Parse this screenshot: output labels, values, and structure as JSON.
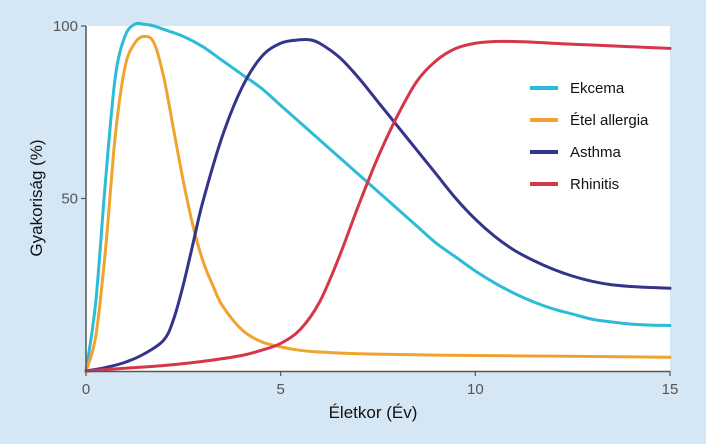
{
  "chart_data": {
    "type": "line",
    "title": "",
    "xlabel": "Életkor (Év)",
    "ylabel": "Gyakoriság (%)",
    "xlim": [
      0,
      15
    ],
    "ylim": [
      0,
      100
    ],
    "x_ticks": [
      0,
      5,
      10,
      15
    ],
    "y_ticks": [
      50,
      100
    ],
    "legend_position": "top-right",
    "grid": false,
    "series": [
      {
        "name": "Ekcema",
        "color": "#2cbcd8",
        "x": [
          0,
          0.25,
          0.5,
          0.75,
          1.0,
          1.25,
          1.5,
          1.75,
          2.0,
          2.5,
          3,
          3.5,
          4,
          4.5,
          5,
          5.5,
          6,
          6.5,
          7,
          7.5,
          8,
          8.5,
          9,
          9.5,
          10,
          10.5,
          11,
          11.5,
          12,
          12.5,
          13,
          13.5,
          14,
          14.5,
          15
        ],
        "y": [
          0,
          20,
          55,
          85,
          97,
          100.5,
          100.5,
          100,
          99,
          97,
          94,
          90,
          86,
          82,
          77,
          72,
          67,
          62,
          57,
          52,
          47,
          42,
          37,
          33,
          29,
          25.5,
          22.5,
          20,
          18,
          16.5,
          15,
          14.2,
          13.6,
          13.3,
          13.2
        ]
      },
      {
        "name": "Étel allergia",
        "color": "#f0a32e",
        "x": [
          0,
          0.25,
          0.5,
          0.75,
          1.0,
          1.25,
          1.5,
          1.75,
          2.0,
          2.25,
          2.5,
          2.75,
          3,
          3.25,
          3.5,
          4,
          4.5,
          5,
          5.5,
          6,
          7,
          8,
          9,
          10,
          11,
          12,
          13,
          14,
          15
        ],
        "y": [
          0,
          10,
          35,
          68,
          88,
          95,
          97,
          95,
          85,
          70,
          55,
          42,
          32,
          25,
          19,
          12,
          8.5,
          7,
          6,
          5.5,
          5,
          4.8,
          4.6,
          4.5,
          4.4,
          4.3,
          4.2,
          4.1,
          4
        ]
      },
      {
        "name": "Asthma",
        "color": "#34348c",
        "x": [
          0,
          0.5,
          1.0,
          1.5,
          2.0,
          2.25,
          2.5,
          2.75,
          3.0,
          3.5,
          4.0,
          4.5,
          5.0,
          5.5,
          5.75,
          6.0,
          6.5,
          7.0,
          7.5,
          8.0,
          8.5,
          9.0,
          9.5,
          10.0,
          10.5,
          11.0,
          11.5,
          12.0,
          12.5,
          13.0,
          13.5,
          14.0,
          14.5,
          15.0
        ],
        "y": [
          0,
          1,
          2.5,
          5,
          9,
          15,
          25,
          37,
          49,
          68,
          82,
          91,
          95,
          96,
          96,
          95,
          91,
          85,
          78,
          71,
          64,
          57,
          50,
          44,
          39,
          35,
          32,
          29.5,
          27.5,
          26,
          25,
          24.5,
          24.2,
          24
        ]
      },
      {
        "name": "Rhinitis",
        "color": "#d63649",
        "x": [
          0,
          1,
          2,
          3,
          4,
          4.5,
          5,
          5.5,
          6,
          6.5,
          7,
          7.5,
          8,
          8.5,
          9,
          9.5,
          10,
          10.5,
          11,
          11.5,
          12,
          12.5,
          13,
          14,
          15
        ],
        "y": [
          0,
          0.8,
          1.6,
          2.8,
          4.5,
          6,
          8,
          12,
          20,
          33,
          48,
          62,
          74,
          84,
          90,
          93.5,
          95,
          95.5,
          95.5,
          95.3,
          95,
          94.7,
          94.5,
          94,
          93.5
        ]
      }
    ]
  }
}
